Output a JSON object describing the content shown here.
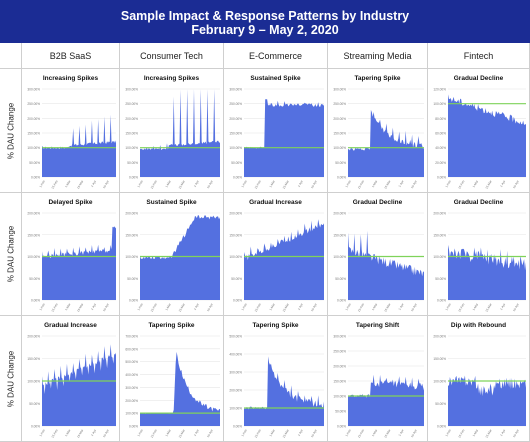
{
  "header": {
    "title": "Sample Impact & Response Patterns by Industry",
    "subtitle": "February 9 – May 2, 2020"
  },
  "columns": [
    "B2B SaaS",
    "Consumer Tech",
    "E-Commerce",
    "Streaming Media",
    "Fintech"
  ],
  "row_label": "% DAU Change",
  "colors": {
    "header_bg": "#1b2c94",
    "area": "#5470e0",
    "baseline": "#7fd35a",
    "grid": "#e6e6e6"
  },
  "chart_data": [
    {
      "type": "area",
      "title": "Increasing Spikes",
      "y_ticks": [
        "300.00%",
        "250.00%",
        "200.00%",
        "150.00%",
        "100.00%",
        "50.00%",
        "0.00%"
      ],
      "x_ticks": [
        "1-Feb",
        "15-Feb",
        "1-Mar",
        "15-Mar",
        "1-Apr",
        "15-Apr"
      ],
      "baseline": 100,
      "pattern": "increasing_spikes",
      "amp": 1.0
    },
    {
      "type": "area",
      "title": "Increasing Spikes",
      "y_ticks": [
        "300.00%",
        "250.00%",
        "200.00%",
        "150.00%",
        "100.00%",
        "50.00%",
        "0.00%"
      ],
      "x_ticks": [
        "1-Feb",
        "15-Feb",
        "1-Mar",
        "15-Mar",
        "1-Apr",
        "15-Apr"
      ],
      "baseline": 100,
      "pattern": "increasing_spikes",
      "amp": 2.1
    },
    {
      "type": "area",
      "title": "Sustained Spike",
      "y_ticks": [
        "300.00%",
        "250.00%",
        "200.00%",
        "150.00%",
        "100.00%",
        "50.00%",
        "0.00%"
      ],
      "x_ticks": [
        "1-Feb",
        "15-Feb",
        "1-Mar",
        "15-Mar",
        "1-Apr",
        "15-Apr"
      ],
      "baseline": 100,
      "pattern": "sustained_spike_high",
      "amp": 1.0
    },
    {
      "type": "area",
      "title": "Tapering Spike",
      "y_ticks": [
        "300.00%",
        "250.00%",
        "200.00%",
        "150.00%",
        "100.00%",
        "50.00%",
        "0.00%"
      ],
      "x_ticks": [
        "1-Feb",
        "15-Feb",
        "1-Mar",
        "15-Mar",
        "1-Apr",
        "15-Apr"
      ],
      "baseline": 100,
      "pattern": "tapering_spike",
      "amp": 1.0
    },
    {
      "type": "area",
      "title": "Gradual Decline",
      "y_ticks": [
        "120.00%",
        "100.00%",
        "80.00%",
        "60.00%",
        "40.00%",
        "20.00%",
        "0.00%"
      ],
      "x_ticks": [
        "1-Feb",
        "15-Feb",
        "1-Mar",
        "15-Mar",
        "1-Apr",
        "15-Apr"
      ],
      "baseline": 100,
      "pattern": "gradual_decline_top",
      "amp": 1.0
    },
    {
      "type": "area",
      "title": "Delayed Spike",
      "y_ticks": [
        "200.00%",
        "150.00%",
        "100.00%",
        "50.00%",
        "0.00%"
      ],
      "x_ticks": [
        "1-Feb",
        "15-Feb",
        "1-Mar",
        "15-Mar",
        "1-Apr",
        "15-Apr"
      ],
      "baseline": 100,
      "pattern": "delayed_spike",
      "amp": 1.0
    },
    {
      "type": "area",
      "title": "Sustained Spike",
      "y_ticks": [
        "200.00%",
        "150.00%",
        "100.00%",
        "50.00%",
        "0.00%"
      ],
      "x_ticks": [
        "1-Feb",
        "15-Feb",
        "1-Mar",
        "15-Mar",
        "1-Apr",
        "15-Apr"
      ],
      "baseline": 100,
      "pattern": "sustained_spike_ramp",
      "amp": 1.0
    },
    {
      "type": "area",
      "title": "Gradual Increase",
      "y_ticks": [
        "200.00%",
        "150.00%",
        "100.00%",
        "50.00%",
        "0.00%"
      ],
      "x_ticks": [
        "1-Feb",
        "15-Feb",
        "1-Mar",
        "15-Mar",
        "1-Apr",
        "15-Apr"
      ],
      "baseline": 100,
      "pattern": "gradual_increase",
      "amp": 1.0
    },
    {
      "type": "area",
      "title": "Gradual Decline",
      "y_ticks": [
        "200.00%",
        "150.00%",
        "100.00%",
        "50.00%",
        "0.00%"
      ],
      "x_ticks": [
        "1-Feb",
        "15-Feb",
        "1-Mar",
        "15-Mar",
        "1-Apr",
        "15-Apr"
      ],
      "baseline": 100,
      "pattern": "gradual_decline_spiky",
      "amp": 1.0
    },
    {
      "type": "area",
      "title": "Gradual Decline",
      "y_ticks": [
        "200.00%",
        "150.00%",
        "100.00%",
        "50.00%",
        "0.00%"
      ],
      "x_ticks": [
        "1-Feb",
        "15-Feb",
        "1-Mar",
        "15-Mar",
        "1-Apr",
        "15-Apr"
      ],
      "baseline": 100,
      "pattern": "gradual_decline_noisy",
      "amp": 1.0
    },
    {
      "type": "area",
      "title": "Gradual Increase",
      "y_ticks": [
        "200.00%",
        "150.00%",
        "100.00%",
        "50.00%",
        "0.00%"
      ],
      "x_ticks": [
        "1-Feb",
        "15-Feb",
        "1-Mar",
        "15-Mar",
        "1-Apr",
        "15-Apr"
      ],
      "baseline": 100,
      "pattern": "gradual_increase_weekly",
      "amp": 1.0
    },
    {
      "type": "area",
      "title": "Tapering Spike",
      "y_ticks": [
        "700.00%",
        "600.00%",
        "500.00%",
        "400.00%",
        "300.00%",
        "200.00%",
        "100.00%",
        "0.00%"
      ],
      "x_ticks": [
        "1-Feb",
        "15-Feb",
        "1-Mar",
        "15-Mar",
        "1-Apr",
        "15-Apr"
      ],
      "baseline": 100,
      "pattern": "tapering_spike_big",
      "amp": 1.0
    },
    {
      "type": "area",
      "title": "Tapering Spike",
      "y_ticks": [
        "500.00%",
        "400.00%",
        "300.00%",
        "200.00%",
        "100.00%",
        "0.00%"
      ],
      "x_ticks": [
        "1-Feb",
        "15-Feb",
        "1-Mar",
        "15-Mar",
        "1-Apr",
        "15-Apr"
      ],
      "baseline": 100,
      "pattern": "tapering_spike_mid",
      "amp": 1.0
    },
    {
      "type": "area",
      "title": "Tapering Shift",
      "y_ticks": [
        "300.00%",
        "250.00%",
        "200.00%",
        "150.00%",
        "100.00%",
        "50.00%",
        "0.00%"
      ],
      "x_ticks": [
        "1-Feb",
        "15-Feb",
        "1-Mar",
        "15-Mar",
        "1-Apr",
        "15-Apr"
      ],
      "baseline": 100,
      "pattern": "tapering_shift",
      "amp": 1.0
    },
    {
      "type": "area",
      "title": "Dip with Rebound",
      "y_ticks": [
        "200.00%",
        "150.00%",
        "100.00%",
        "50.00%",
        "0.00%"
      ],
      "x_ticks": [
        "1-Feb",
        "15-Feb",
        "1-Mar",
        "15-Mar",
        "1-Apr",
        "15-Apr"
      ],
      "baseline": 100,
      "pattern": "dip_rebound",
      "amp": 1.0
    }
  ]
}
